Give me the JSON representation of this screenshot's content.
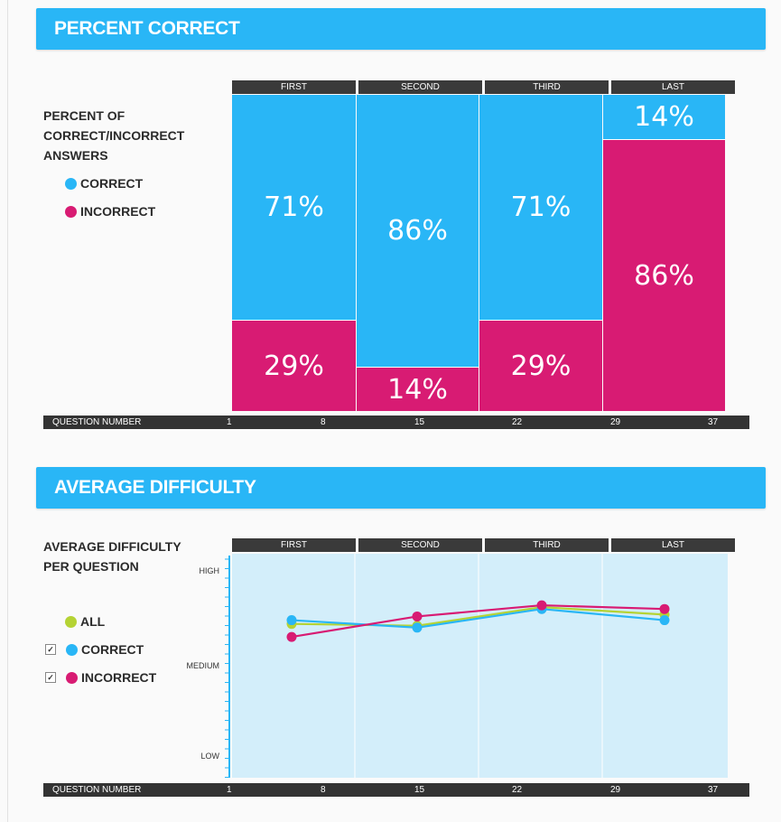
{
  "percent_section": {
    "title": "PERCENT CORRECT",
    "side_label": "PERCENT OF CORRECT/INCORRECT ANSWERS",
    "legend": [
      {
        "label": "CORRECT",
        "color": "#29b6f6"
      },
      {
        "label": "INCORRECT",
        "color": "#d81b73"
      }
    ]
  },
  "difficulty_section": {
    "title": "AVERAGE DIFFICULTY",
    "side_label": "AVERAGE DIFFICULTY PER QUESTION",
    "legend": [
      {
        "label": "ALL",
        "color": "#b5d334",
        "checkbox": false
      },
      {
        "label": "CORRECT",
        "color": "#29b6f6",
        "checkbox": true,
        "checked": true
      },
      {
        "label": "INCORRECT",
        "color": "#d81b73",
        "checkbox": true,
        "checked": true
      }
    ]
  },
  "quarters": [
    "FIRST",
    "SECOND",
    "THIRD",
    "LAST"
  ],
  "axis": {
    "label": "QUESTION NUMBER",
    "ticks": [
      "1",
      "8",
      "15",
      "22",
      "29",
      "37"
    ]
  },
  "colors": {
    "accent": "#29b6f6",
    "correct": "#29b6f6",
    "incorrect": "#d81b73",
    "all": "#b5d334",
    "plot_bg": "#d3eefa"
  },
  "chart_data": [
    {
      "type": "bar",
      "subtype": "stacked-percent",
      "title": "PERCENT CORRECT",
      "categories": [
        "FIRST",
        "SECOND",
        "THIRD",
        "LAST"
      ],
      "series": [
        {
          "name": "CORRECT",
          "values": [
            71,
            86,
            71,
            14
          ],
          "labels": [
            "71%",
            "86%",
            "71%",
            "14%"
          ]
        },
        {
          "name": "INCORRECT",
          "values": [
            29,
            14,
            29,
            86
          ],
          "labels": [
            "29%",
            "14%",
            "29%",
            "86%"
          ]
        }
      ],
      "xlabel": "QUESTION NUMBER",
      "x_ticks": [
        "1",
        "8",
        "15",
        "22",
        "29",
        "37"
      ],
      "ylim": [
        0,
        100
      ]
    },
    {
      "type": "line",
      "title": "AVERAGE DIFFICULTY",
      "categories": [
        "FIRST",
        "SECOND",
        "THIRD",
        "LAST"
      ],
      "y_ticks": [
        "HIGH",
        "MEDIUM",
        "LOW"
      ],
      "ylim": [
        0,
        1
      ],
      "series": [
        {
          "name": "ALL",
          "values": [
            0.72,
            0.71,
            0.81,
            0.77
          ]
        },
        {
          "name": "CORRECT",
          "values": [
            0.74,
            0.7,
            0.8,
            0.74
          ]
        },
        {
          "name": "INCORRECT",
          "values": [
            0.65,
            0.76,
            0.82,
            0.8
          ]
        }
      ],
      "xlabel": "QUESTION NUMBER",
      "x_ticks": [
        "1",
        "8",
        "15",
        "22",
        "29",
        "37"
      ],
      "grid": true
    }
  ]
}
